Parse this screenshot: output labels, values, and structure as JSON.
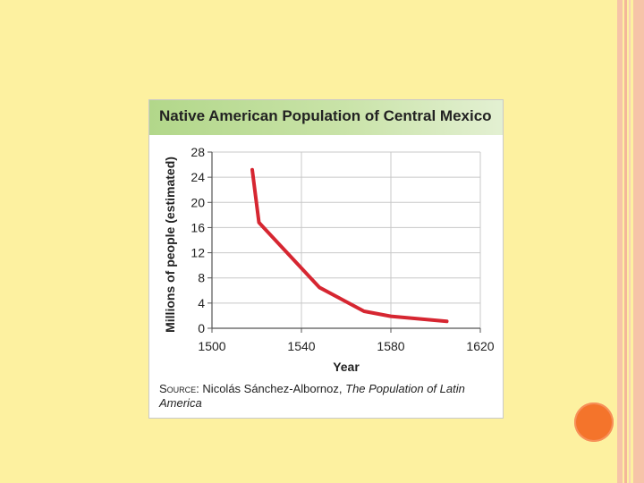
{
  "slide": {
    "background_color": "#fdf1a0",
    "accent_dot_color": "#f4742b"
  },
  "card": {
    "title": "Native American Population of Central Mexico",
    "source_label": "Source:",
    "source_author": "Nicolás Sánchez-Albornoz,",
    "source_title": "The Population of Latin America"
  },
  "chart_data": {
    "type": "line",
    "title": "Native American Population of Central Mexico",
    "xlabel": "Year",
    "ylabel": "Millions of people (estimated)",
    "xlim": [
      1500,
      1620
    ],
    "ylim": [
      0,
      28
    ],
    "x_ticks": [
      1500,
      1540,
      1580,
      1620
    ],
    "y_ticks": [
      0,
      4,
      8,
      12,
      16,
      20,
      24,
      28
    ],
    "grid": true,
    "line_color": "#d62631",
    "series": [
      {
        "name": "Population",
        "x": [
          1518,
          1521,
          1548,
          1568,
          1580,
          1605
        ],
        "values": [
          25.2,
          16.8,
          6.5,
          2.7,
          1.9,
          1.1
        ]
      }
    ]
  }
}
